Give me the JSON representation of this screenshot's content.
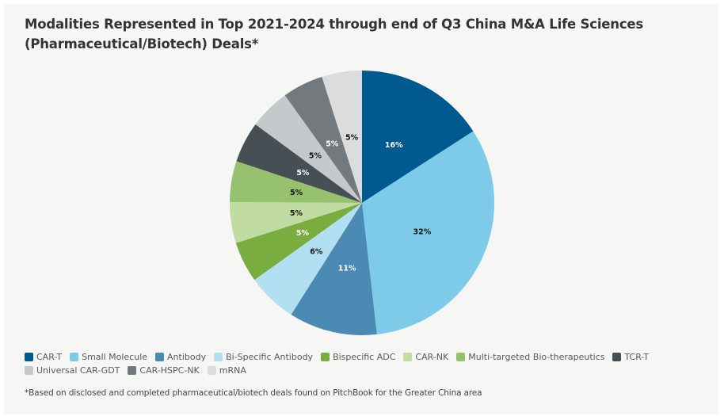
{
  "chart_data": {
    "type": "pie",
    "title": "Modalities Represented in Top 2021-2024 through end of Q3 China M&A Life Sciences (Pharmaceutical/Biotech) Deals*",
    "start_angle": "12 o'clock, clockwise",
    "slices": [
      {
        "label": "CAR-T",
        "value": 15.9,
        "display": "16%",
        "color": "#005a8f",
        "label_color": "#ffffff"
      },
      {
        "label": "Small Molecule",
        "value": 32.3,
        "display": "32%",
        "color": "#7ecbe9",
        "label_color": "#111111"
      },
      {
        "label": "Antibody",
        "value": 10.8,
        "display": "11%",
        "color": "#4a8ab3",
        "label_color": "#ffffff"
      },
      {
        "label": "Bi-Specific Antibody",
        "value": 6.1,
        "display": "6%",
        "color": "#b2e0f2",
        "label_color": "#111111"
      },
      {
        "label": "Bispecific ADC",
        "value": 5.0,
        "display": "5%",
        "color": "#79ad40",
        "label_color": "#ffffff"
      },
      {
        "label": "CAR-NK",
        "value": 5.0,
        "display": "5%",
        "color": "#c0dca2",
        "label_color": "#111111"
      },
      {
        "label": "Multi-targeted Bio-therapeutics",
        "value": 5.0,
        "display": "5%",
        "color": "#96c16f",
        "label_color": "#111111"
      },
      {
        "label": "TCR-T",
        "value": 5.0,
        "display": "5%",
        "color": "#474e54",
        "label_color": "#ffffff"
      },
      {
        "label": "Universal CAR-GDT",
        "value": 5.0,
        "display": "5%",
        "color": "#c6c9cc",
        "label_color": "#111111"
      },
      {
        "label": "CAR-HSPC-NK",
        "value": 5.0,
        "display": "5%",
        "color": "#74797d",
        "label_color": "#ffffff"
      },
      {
        "label": "mRNA",
        "value": 4.9,
        "display": "5%",
        "color": "#dcdcdc",
        "label_color": "#111111"
      }
    ],
    "legend_position": "bottom-left",
    "footnote": "*Based on disclosed and completed pharmaceutical/biotech deals found on PitchBook for the Greater China area"
  },
  "title_line1": "Modalities Represented in Top 2021-2024 through end of Q3 China M&A Life Sciences",
  "title_line2": "(Pharmaceutical/Biotech) Deals*"
}
